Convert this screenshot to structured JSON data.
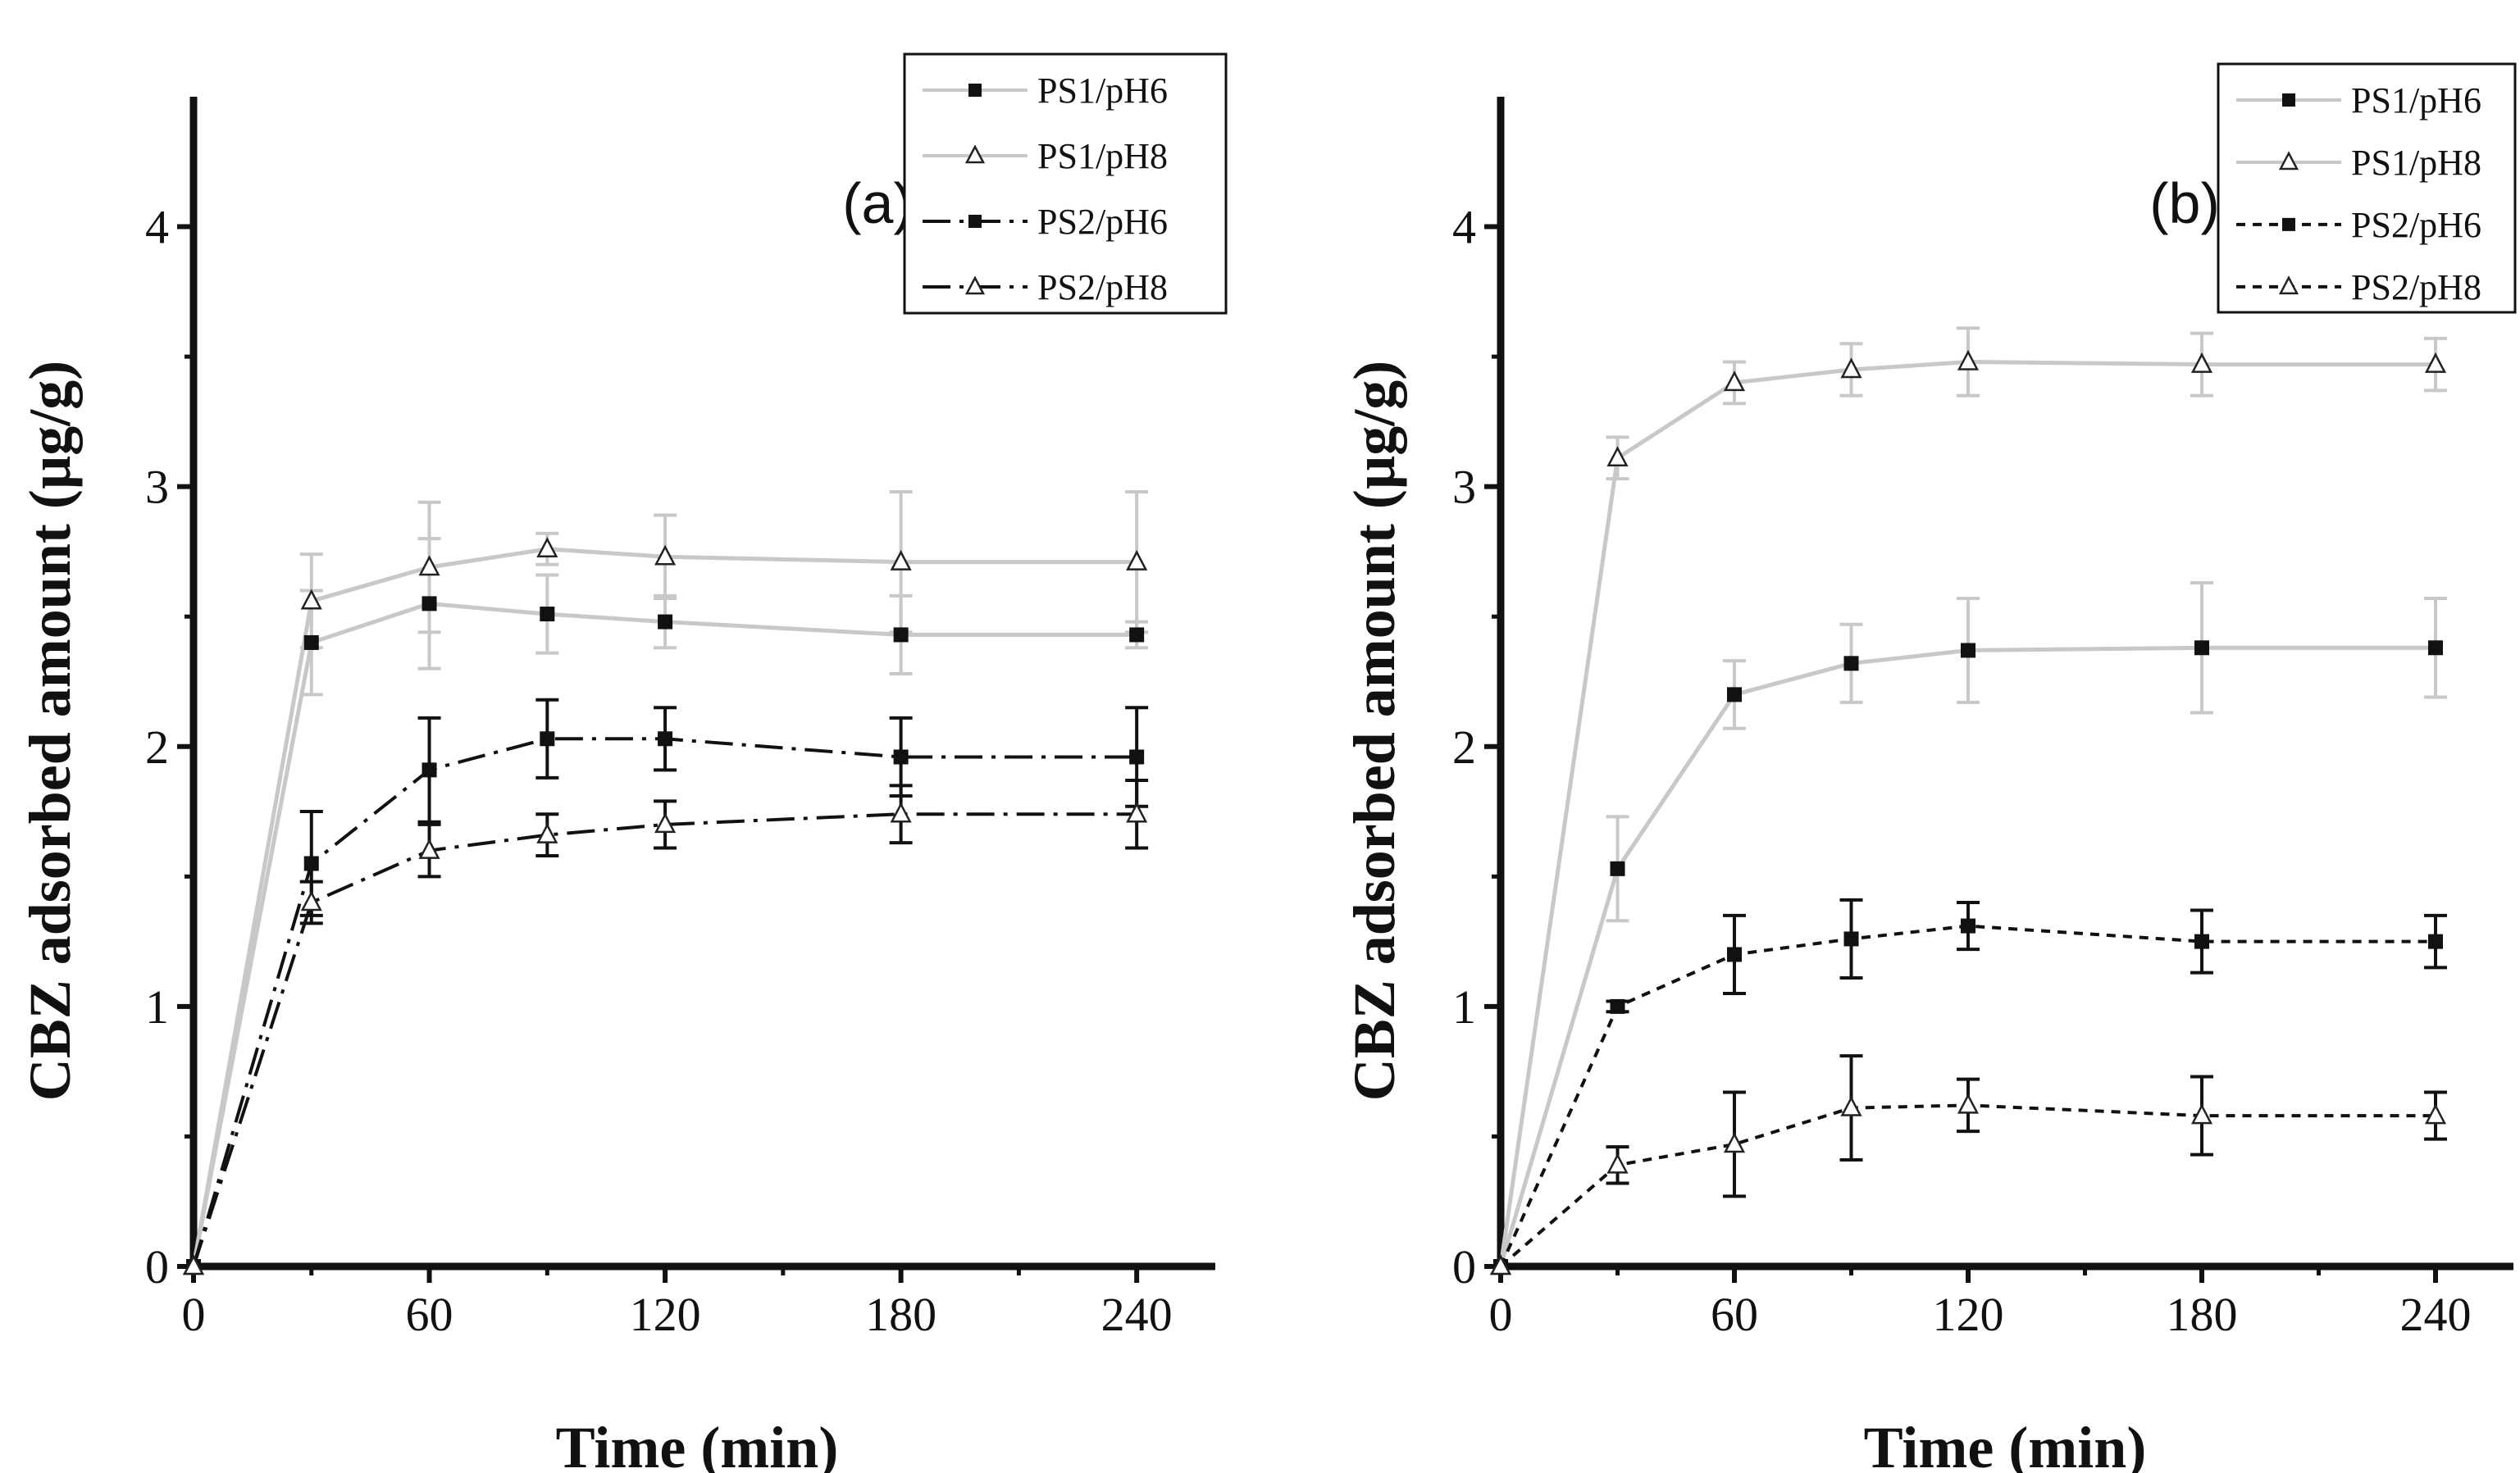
{
  "chart_data": [
    {
      "type": "line",
      "panel_label": "(a)",
      "xlabel": "Time (min)",
      "ylabel": "CBZ adsorbed amount (µg/g)",
      "xlim": [
        0,
        260
      ],
      "ylim": [
        0,
        4.5
      ],
      "xticks": [
        0,
        60,
        120,
        180,
        240
      ],
      "yticks": [
        0,
        1,
        2,
        3,
        4
      ],
      "legend_position": "top-right",
      "x": [
        0,
        30,
        60,
        90,
        120,
        180,
        240
      ],
      "series": [
        {
          "name": "PS1/pH6",
          "color": "#c8c8c8",
          "line": "solid",
          "marker": "filled-square",
          "values": [
            0,
            2.4,
            2.55,
            2.51,
            2.48,
            2.43,
            2.43
          ],
          "errors": [
            0,
            0.2,
            0.25,
            0.15,
            0.1,
            0.15,
            0.05
          ]
        },
        {
          "name": "PS1/pH8",
          "color": "#c8c8c8",
          "line": "solid",
          "marker": "open-triangle",
          "values": [
            0,
            2.56,
            2.69,
            2.76,
            2.73,
            2.71,
            2.71
          ],
          "errors": [
            0,
            0.18,
            0.25,
            0.06,
            0.16,
            0.27,
            0.27
          ]
        },
        {
          "name": "PS2/pH6",
          "color": "#111111",
          "line": "dash-dot",
          "marker": "filled-square",
          "values": [
            0,
            1.55,
            1.91,
            2.03,
            2.03,
            1.96,
            1.96
          ],
          "errors": [
            0,
            0.2,
            0.2,
            0.15,
            0.12,
            0.15,
            0.19
          ]
        },
        {
          "name": "PS2/pH8",
          "color": "#111111",
          "line": "dash-dot",
          "marker": "open-triangle",
          "values": [
            0,
            1.4,
            1.6,
            1.66,
            1.7,
            1.74,
            1.74
          ],
          "errors": [
            0,
            0.08,
            0.1,
            0.08,
            0.09,
            0.11,
            0.13
          ]
        }
      ]
    },
    {
      "type": "line",
      "panel_label": "(b)",
      "xlabel": "Time (min)",
      "ylabel": "CBZ adsorbed amount (µg/g)",
      "xlim": [
        0,
        260
      ],
      "ylim": [
        0,
        4.5
      ],
      "xticks": [
        0,
        60,
        120,
        180,
        240
      ],
      "yticks": [
        0,
        1,
        2,
        3,
        4
      ],
      "legend_position": "top-right",
      "x": [
        0,
        30,
        60,
        90,
        120,
        180,
        240
      ],
      "series": [
        {
          "name": "PS1/pH6",
          "color": "#c8c8c8",
          "line": "solid",
          "marker": "filled-square",
          "values": [
            0,
            1.53,
            2.2,
            2.32,
            2.37,
            2.38,
            2.38
          ],
          "errors": [
            0,
            0.2,
            0.13,
            0.15,
            0.2,
            0.25,
            0.19
          ]
        },
        {
          "name": "PS1/pH8",
          "color": "#c8c8c8",
          "line": "solid",
          "marker": "open-triangle",
          "values": [
            0,
            3.11,
            3.4,
            3.45,
            3.48,
            3.47,
            3.47
          ],
          "errors": [
            0,
            0.08,
            0.08,
            0.1,
            0.13,
            0.12,
            0.1
          ]
        },
        {
          "name": "PS2/pH6",
          "color": "#111111",
          "line": "short-dash",
          "marker": "filled-square",
          "values": [
            0,
            1.0,
            1.2,
            1.26,
            1.31,
            1.25,
            1.25
          ],
          "errors": [
            0,
            0.02,
            0.15,
            0.15,
            0.09,
            0.12,
            0.1
          ]
        },
        {
          "name": "PS2/pH8",
          "color": "#111111",
          "line": "short-dash",
          "marker": "open-triangle",
          "values": [
            0,
            0.39,
            0.47,
            0.61,
            0.62,
            0.58,
            0.58
          ],
          "errors": [
            0,
            0.07,
            0.2,
            0.2,
            0.1,
            0.15,
            0.09
          ]
        }
      ]
    }
  ]
}
